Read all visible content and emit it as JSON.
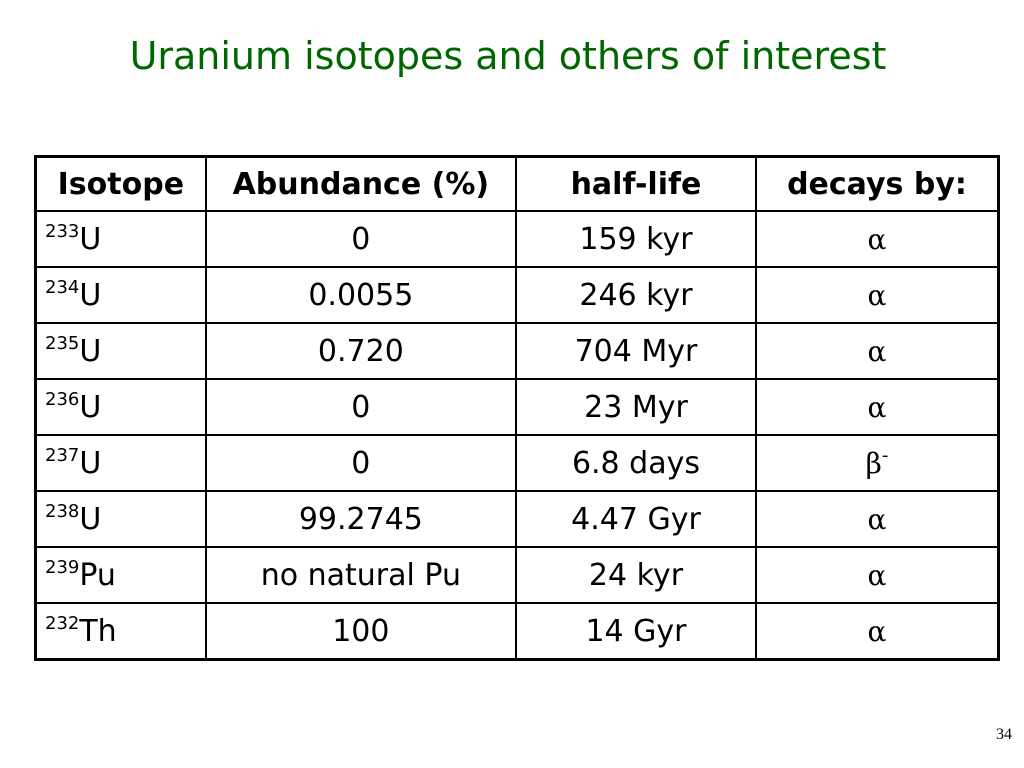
{
  "title": "Uranium isotopes and others of interest",
  "table": {
    "header": [
      "Isotope",
      "Abundance (%)",
      "half-life",
      "decays by:"
    ],
    "rows": [
      {
        "isotope": {
          "mass": "233",
          "symbol": "U"
        },
        "abundance": "0",
        "half_life": "159 kyr",
        "decay": {
          "symbol": "α"
        }
      },
      {
        "isotope": {
          "mass": "234",
          "symbol": "U"
        },
        "abundance": "0.0055",
        "half_life": "246 kyr",
        "decay": {
          "symbol": "α"
        }
      },
      {
        "isotope": {
          "mass": "235",
          "symbol": "U"
        },
        "abundance": "0.720",
        "half_life": "704 Myr",
        "decay": {
          "symbol": "α"
        }
      },
      {
        "isotope": {
          "mass": "236",
          "symbol": "U"
        },
        "abundance": "0",
        "half_life": "23 Myr",
        "decay": {
          "symbol": "α"
        }
      },
      {
        "isotope": {
          "mass": "237",
          "symbol": "U"
        },
        "abundance": "0",
        "half_life": "6.8 days",
        "decay": {
          "symbol": "β",
          "charge": "-"
        }
      },
      {
        "isotope": {
          "mass": "238",
          "symbol": "U"
        },
        "abundance": "99.2745",
        "half_life": "4.47 Gyr",
        "decay": {
          "symbol": "α"
        }
      },
      {
        "isotope": {
          "mass": "239",
          "symbol": "Pu"
        },
        "abundance": "no natural Pu",
        "half_life": "24 kyr",
        "decay": {
          "symbol": "α"
        }
      },
      {
        "isotope": {
          "mass": "232",
          "symbol": "Th"
        },
        "abundance": "100",
        "half_life": "14 Gyr",
        "decay": {
          "symbol": "α"
        }
      }
    ]
  },
  "page_number": "34"
}
